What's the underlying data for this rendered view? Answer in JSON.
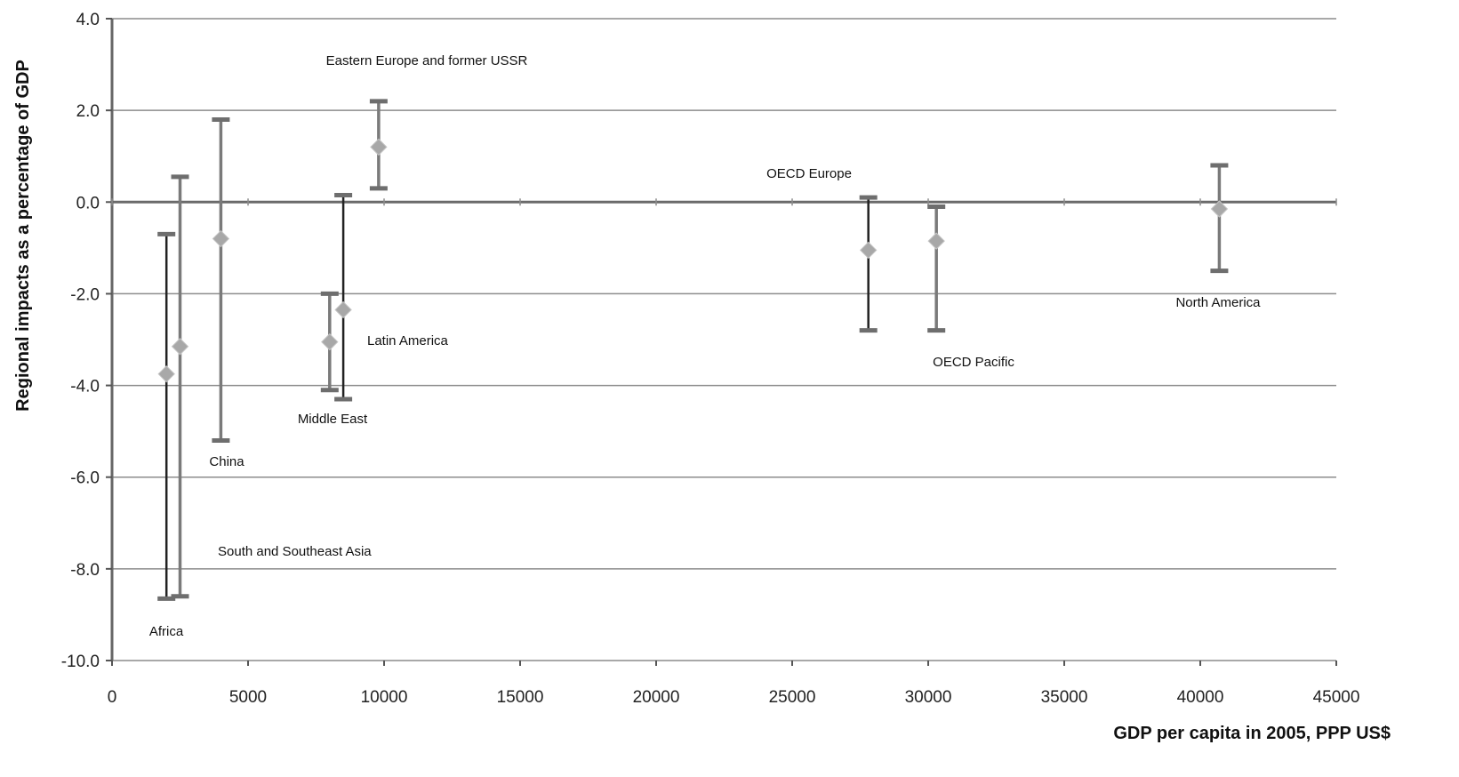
{
  "chart_data": {
    "type": "scatter",
    "xlabel": "GDP per capita in 2005, PPP US$",
    "ylabel": "Regional  impacts as a percentage of GDP",
    "xlim": [
      0,
      45000
    ],
    "ylim": [
      -10,
      4
    ],
    "x_ticks": [
      "0",
      "5000",
      "10000",
      "15000",
      "20000",
      "25000",
      "30000",
      "35000",
      "40000",
      "45000"
    ],
    "y_ticks": [
      "4.0",
      "2.0",
      "0.0",
      "-2.0",
      "-4.0",
      "-6.0",
      "-8.0",
      "-10.0"
    ],
    "grid": "horizontal",
    "colors": {
      "marker": "#a8a8a8",
      "bar_dark": "#222222",
      "bar_grey": "#7a7a7a",
      "grid": "#7a7a7a"
    },
    "points": [
      {
        "label": "Africa",
        "x": 2000,
        "y": -3.75,
        "low": -8.65,
        "high": -0.7
      },
      {
        "label": "South and Southeast Asia",
        "x": 2500,
        "y": -3.15,
        "low": -8.6,
        "high": 0.55
      },
      {
        "label": "China",
        "x": 4000,
        "y": -0.8,
        "low": -5.2,
        "high": 1.8
      },
      {
        "label": "Middle East",
        "x": 8000,
        "y": -3.05,
        "low": -4.1,
        "high": -2.0
      },
      {
        "label": "Latin America",
        "x": 8500,
        "y": -2.35,
        "low": -4.3,
        "high": 0.15
      },
      {
        "label": "Eastern Europe and former USSR",
        "x": 9800,
        "y": 1.2,
        "low": 0.3,
        "high": 2.2
      },
      {
        "label": "OECD Europe",
        "x": 27800,
        "y": -1.05,
        "low": -2.8,
        "high": 0.1
      },
      {
        "label": "OECD Pacific",
        "x": 30300,
        "y": -0.85,
        "low": -2.8,
        "high": -0.1
      },
      {
        "label": "North America",
        "x": 40700,
        "y": -0.15,
        "low": -1.5,
        "high": 0.8
      }
    ]
  }
}
